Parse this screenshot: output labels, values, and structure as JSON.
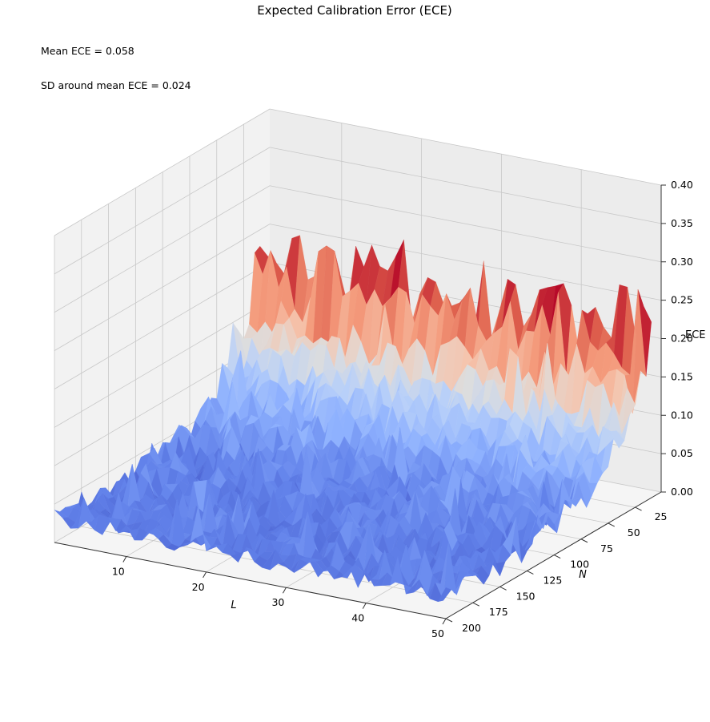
{
  "chart_data": {
    "type": "surface3d",
    "title": "Expected Calibration Error (ECE)",
    "annotations": [
      "Mean ECE = 0.058",
      "SD around mean ECE = 0.024"
    ],
    "xlabel": "L",
    "ylabel": "N",
    "zlabel": "ECE",
    "x_ticks": [
      10,
      20,
      30,
      40,
      50
    ],
    "y_ticks": [
      25,
      50,
      75,
      100,
      125,
      150,
      175,
      200
    ],
    "z_ticks": [
      0.0,
      0.05,
      0.1,
      0.15,
      0.2,
      0.25,
      0.3,
      0.35,
      0.4
    ],
    "z_tick_labels": [
      "0.00",
      "0.05",
      "0.10",
      "0.15",
      "0.20",
      "0.25",
      "0.30",
      "0.35",
      "0.40"
    ],
    "xlim": [
      1,
      50
    ],
    "ylim": [
      1,
      200
    ],
    "zlim": [
      0,
      0.4
    ],
    "grid": true,
    "colormap": "coolwarm",
    "colors": {
      "low": "#3b4cc0",
      "mid": "#dddddd",
      "high": "#b40426"
    },
    "surface_summary": {
      "L_range": [
        1,
        50
      ],
      "N_range": [
        10,
        200
      ],
      "ece_at_small_N_peak": 0.25,
      "ece_at_small_N_typical": 0.19,
      "ece_at_large_N_typical": 0.03,
      "mean": 0.058,
      "sd": 0.024
    }
  }
}
